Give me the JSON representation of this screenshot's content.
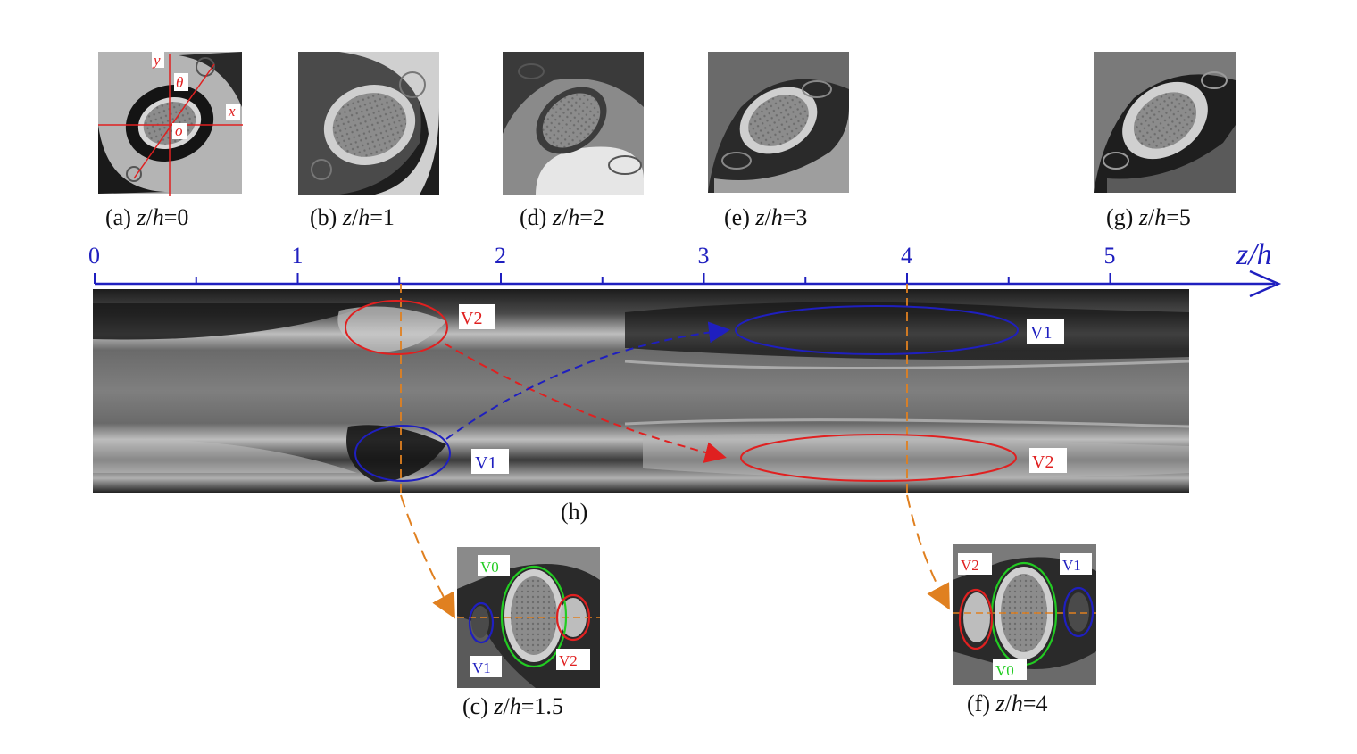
{
  "panels": [
    {
      "id": "a",
      "caption_prefix": "(a) ",
      "var": "z",
      "sep": "/",
      "var2": "h",
      "value": "=0"
    },
    {
      "id": "b",
      "caption_prefix": "(b) ",
      "var": "z",
      "sep": "/",
      "var2": "h",
      "value": "=1"
    },
    {
      "id": "d",
      "caption_prefix": "(d) ",
      "var": "z",
      "sep": "/",
      "var2": "h",
      "value": "=2"
    },
    {
      "id": "e",
      "caption_prefix": "(e) ",
      "var": "z",
      "sep": "/",
      "var2": "h",
      "value": "=3"
    },
    {
      "id": "g",
      "caption_prefix": "(g) ",
      "var": "z",
      "sep": "/",
      "var2": "h",
      "value": "=5"
    },
    {
      "id": "c",
      "caption_prefix": "(c) ",
      "var": "z",
      "sep": "/",
      "var2": "h",
      "value": "=1.5"
    },
    {
      "id": "f",
      "caption_prefix": "(f) ",
      "var": "z",
      "sep": "/",
      "var2": "h",
      "value": "=4"
    }
  ],
  "axis": {
    "name": "z/h",
    "ticks": [
      "0",
      "1",
      "2",
      "3",
      "4",
      "5"
    ],
    "color": "#1f1fbf"
  },
  "panel_a_axes": {
    "y": "y",
    "x": "x",
    "theta": "θ",
    "origin": "o"
  },
  "main_panel_label": "(h)",
  "main_labels": {
    "v2_top": "V2",
    "v1_top": "V1",
    "v1_bottom": "V1",
    "v2_bottom": "V2"
  },
  "inset_c_labels": {
    "v0": "V0",
    "v1": "V1",
    "v2": "V2"
  },
  "inset_f_labels": {
    "v2": "V2",
    "v1": "V1",
    "v0": "V0"
  },
  "colors": {
    "red": "#e02020",
    "blue": "#1f1fbf",
    "green": "#22cc22",
    "orange": "#e08020"
  }
}
